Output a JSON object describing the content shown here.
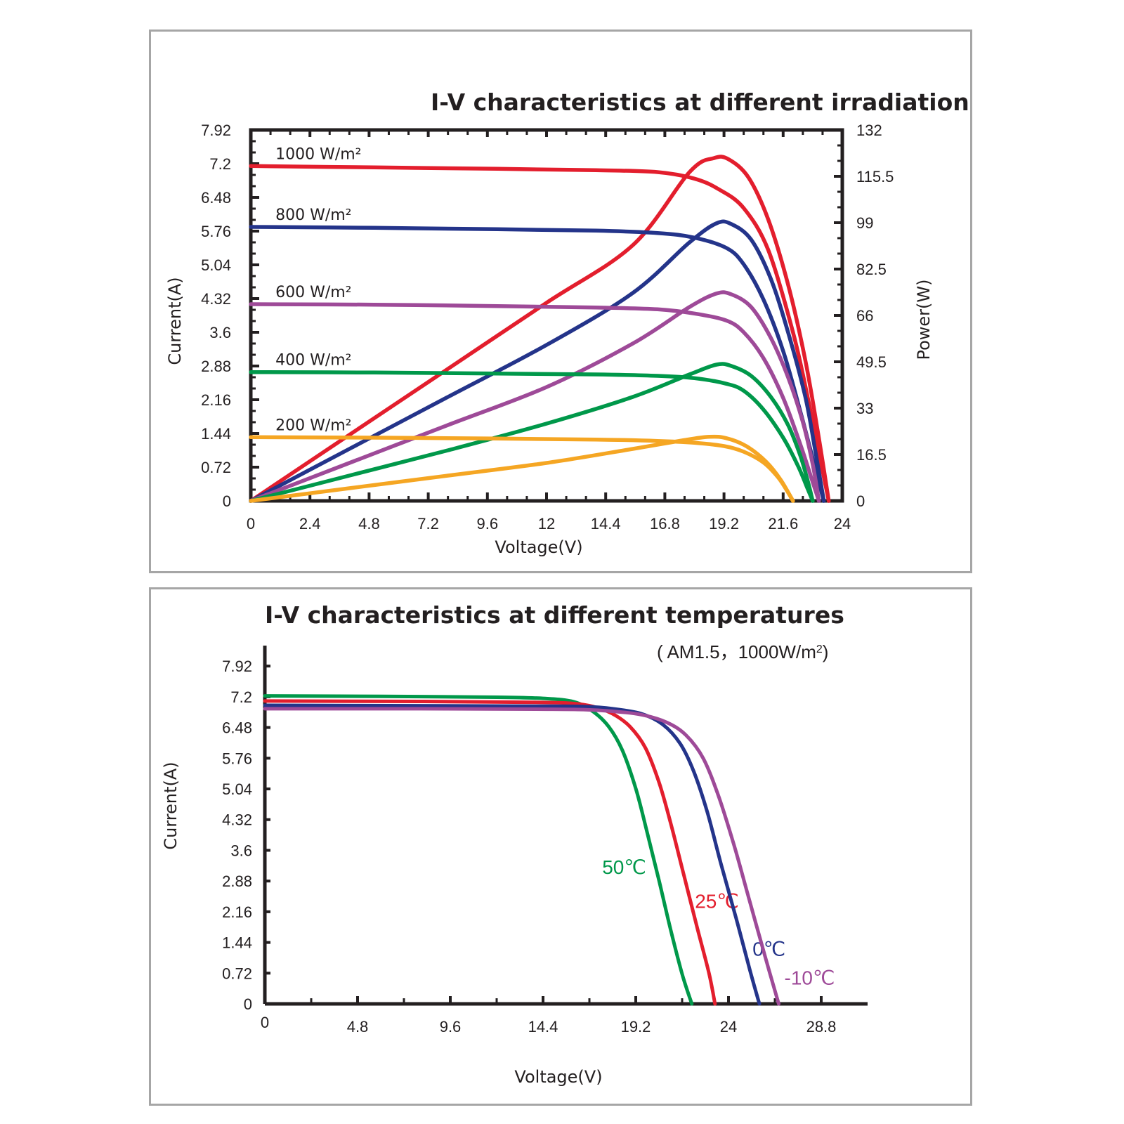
{
  "chart_data": [
    {
      "type": "line",
      "title": "I-V characteristics at different irradiations",
      "xlabel": "Voltage(V)",
      "ylabel": "Current(A)",
      "y2label": "Power(W)",
      "xlim": [
        0,
        24
      ],
      "ylim": [
        0,
        7.92
      ],
      "y2lim": [
        0,
        132
      ],
      "x_ticks": [
        "0",
        "2.4",
        "4.8",
        "7.2",
        "9.6",
        "12",
        "14.4",
        "16.8",
        "19.2",
        "21.6",
        "24"
      ],
      "y_ticks": [
        "0",
        "0.72",
        "1.44",
        "2.16",
        "2.88",
        "3.6",
        "4.32",
        "5.04",
        "5.76",
        "6.48",
        "7.2",
        "7.92"
      ],
      "y2_ticks": [
        "0",
        "16.5",
        "33",
        "49.5",
        "66",
        "82.5",
        "99",
        "115.5",
        "132"
      ],
      "grid": false,
      "series": [
        {
          "name": "1000 W/m²",
          "color": "#e31e2d",
          "iv": [
            [
              0,
              7.15
            ],
            [
              5,
              7.12
            ],
            [
              10,
              7.09
            ],
            [
              14,
              7.06
            ],
            [
              16.5,
              7.02
            ],
            [
              18,
              6.88
            ],
            [
              19,
              6.65
            ],
            [
              20,
              6.25
            ],
            [
              21,
              5.35
            ],
            [
              22,
              3.6
            ],
            [
              22.6,
              2.2
            ],
            [
              23.1,
              0.9
            ],
            [
              23.45,
              0
            ]
          ],
          "power": [
            [
              0,
              0
            ],
            [
              4,
              23.5
            ],
            [
              8,
              47
            ],
            [
              12,
              70.5
            ],
            [
              15.5,
              91
            ],
            [
              17.8,
              117
            ],
            [
              18.8,
              122
            ],
            [
              19.4,
              121.5
            ],
            [
              20.2,
              115
            ],
            [
              21,
              100
            ],
            [
              21.8,
              77
            ],
            [
              22.5,
              50
            ],
            [
              23,
              25
            ],
            [
              23.45,
              0
            ]
          ]
        },
        {
          "name": "800 W/m²",
          "color": "#24348a",
          "iv": [
            [
              0,
              5.85
            ],
            [
              5,
              5.83
            ],
            [
              10,
              5.8
            ],
            [
              14,
              5.77
            ],
            [
              16.5,
              5.72
            ],
            [
              18,
              5.62
            ],
            [
              19.3,
              5.4
            ],
            [
              20,
              5.05
            ],
            [
              20.8,
              4.3
            ],
            [
              21.6,
              3.2
            ],
            [
              22.3,
              1.9
            ],
            [
              22.9,
              0.7
            ],
            [
              23.25,
              0
            ]
          ],
          "power": [
            [
              0,
              0
            ],
            [
              4,
              18.5
            ],
            [
              8,
              37
            ],
            [
              12,
              55.5
            ],
            [
              15.5,
              74
            ],
            [
              17.8,
              92
            ],
            [
              18.9,
              98.8
            ],
            [
              19.5,
              98.5
            ],
            [
              20.3,
              93
            ],
            [
              21.1,
              79
            ],
            [
              21.8,
              60
            ],
            [
              22.5,
              37
            ],
            [
              22.9,
              18
            ],
            [
              23.25,
              0
            ]
          ]
        },
        {
          "name": "600 W/m²",
          "color": "#9e4a98",
          "iv": [
            [
              0,
              4.2
            ],
            [
              5,
              4.19
            ],
            [
              10,
              4.16
            ],
            [
              14,
              4.13
            ],
            [
              16.5,
              4.09
            ],
            [
              18,
              4.0
            ],
            [
              19.3,
              3.85
            ],
            [
              20,
              3.6
            ],
            [
              20.8,
              3.05
            ],
            [
              21.6,
              2.2
            ],
            [
              22.3,
              1.2
            ],
            [
              22.8,
              0.4
            ],
            [
              23.05,
              0
            ]
          ],
          "power": [
            [
              0,
              0
            ],
            [
              4,
              13.5
            ],
            [
              8,
              27
            ],
            [
              12,
              40.5
            ],
            [
              15.5,
              56
            ],
            [
              17.8,
              69
            ],
            [
              18.9,
              73.8
            ],
            [
              19.5,
              73.5
            ],
            [
              20.3,
              69
            ],
            [
              21.1,
              58
            ],
            [
              21.8,
              44
            ],
            [
              22.4,
              28
            ],
            [
              22.8,
              13
            ],
            [
              23.05,
              0
            ]
          ]
        },
        {
          "name": "400 W/m²",
          "color": "#00984a",
          "iv": [
            [
              0,
              2.75
            ],
            [
              5,
              2.74
            ],
            [
              10,
              2.72
            ],
            [
              14,
              2.7
            ],
            [
              16.5,
              2.67
            ],
            [
              18,
              2.62
            ],
            [
              19.3,
              2.5
            ],
            [
              20,
              2.35
            ],
            [
              20.8,
              1.95
            ],
            [
              21.6,
              1.35
            ],
            [
              22.2,
              0.75
            ],
            [
              22.6,
              0.25
            ],
            [
              22.8,
              0
            ]
          ],
          "power": [
            [
              0,
              0
            ],
            [
              4,
              9
            ],
            [
              8,
              18
            ],
            [
              12,
              27.5
            ],
            [
              15.5,
              37
            ],
            [
              17.8,
              45
            ],
            [
              18.9,
              48.5
            ],
            [
              19.5,
              48
            ],
            [
              20.3,
              44.5
            ],
            [
              21.1,
              37
            ],
            [
              21.8,
              27
            ],
            [
              22.3,
              16
            ],
            [
              22.6,
              7
            ],
            [
              22.8,
              0
            ]
          ]
        },
        {
          "name": "200 W/m²",
          "color": "#f5a623",
          "iv": [
            [
              0,
              1.36
            ],
            [
              5,
              1.35
            ],
            [
              10,
              1.33
            ],
            [
              14,
              1.31
            ],
            [
              16.5,
              1.28
            ],
            [
              18,
              1.24
            ],
            [
              19.2,
              1.17
            ],
            [
              20,
              1.05
            ],
            [
              20.8,
              0.82
            ],
            [
              21.4,
              0.5
            ],
            [
              21.8,
              0.18
            ],
            [
              22.0,
              0
            ]
          ],
          "power": [
            [
              0,
              0
            ],
            [
              4,
              4.5
            ],
            [
              8,
              9
            ],
            [
              12,
              13.5
            ],
            [
              15.5,
              18.5
            ],
            [
              17.5,
              21.5
            ],
            [
              18.6,
              22.8
            ],
            [
              19.3,
              22.3
            ],
            [
              20.1,
              19.5
            ],
            [
              20.9,
              14
            ],
            [
              21.5,
              7.5
            ],
            [
              22.0,
              0
            ]
          ]
        }
      ]
    },
    {
      "type": "line",
      "title": "I-V characteristics at different temperatures",
      "subtitle": "( AM1.5，1000W/m",
      "subtitle_sup": "2",
      "subtitle_end": ")",
      "xlabel": "Voltage(V)",
      "ylabel": "Current(A)",
      "xlim": [
        0,
        31.2
      ],
      "ylim": [
        0,
        8.4
      ],
      "x_ticks": [
        "0",
        "4.8",
        "9.6",
        "14.4",
        "19.2",
        "24",
        "28.8"
      ],
      "y_ticks": [
        "0",
        "0.72",
        "1.44",
        "2.16",
        "2.88",
        "3.6",
        "4.32",
        "5.04",
        "5.76",
        "6.48",
        "7.2",
        "7.92"
      ],
      "grid": false,
      "series": [
        {
          "name": "50℃",
          "color": "#00984a",
          "iv": [
            [
              0,
              7.22
            ],
            [
              6,
              7.21
            ],
            [
              12,
              7.19
            ],
            [
              14.5,
              7.16
            ],
            [
              16,
              7.08
            ],
            [
              17,
              6.85
            ],
            [
              17.8,
              6.5
            ],
            [
              18.5,
              5.95
            ],
            [
              19.2,
              5.05
            ],
            [
              19.8,
              4.0
            ],
            [
              20.4,
              2.9
            ],
            [
              21.0,
              1.75
            ],
            [
              21.6,
              0.7
            ],
            [
              22.1,
              0
            ]
          ]
        },
        {
          "name": "25℃",
          "color": "#e31e2d",
          "iv": [
            [
              0,
              7.1
            ],
            [
              8,
              7.09
            ],
            [
              14,
              7.07
            ],
            [
              15.8,
              7.05
            ],
            [
              17,
              6.97
            ],
            [
              18,
              6.8
            ],
            [
              18.9,
              6.5
            ],
            [
              19.7,
              6.0
            ],
            [
              20.4,
              5.2
            ],
            [
              21.0,
              4.25
            ],
            [
              21.7,
              3.0
            ],
            [
              22.4,
              1.75
            ],
            [
              23.0,
              0.7
            ],
            [
              23.3,
              0
            ]
          ]
        },
        {
          "name": "0℃",
          "color": "#24348a",
          "iv": [
            [
              0,
              7.0
            ],
            [
              8,
              6.99
            ],
            [
              14,
              6.98
            ],
            [
              16.5,
              6.97
            ],
            [
              18,
              6.92
            ],
            [
              19.5,
              6.8
            ],
            [
              20.6,
              6.55
            ],
            [
              21.5,
              6.1
            ],
            [
              22.2,
              5.45
            ],
            [
              22.9,
              4.5
            ],
            [
              23.6,
              3.3
            ],
            [
              24.4,
              2.0
            ],
            [
              25.1,
              0.8
            ],
            [
              25.6,
              0
            ]
          ]
        },
        {
          "name": "-10℃",
          "color": "#9e4a98",
          "iv": [
            [
              0,
              6.92
            ],
            [
              8,
              6.92
            ],
            [
              14,
              6.91
            ],
            [
              16.5,
              6.9
            ],
            [
              18,
              6.86
            ],
            [
              19.5,
              6.78
            ],
            [
              20.8,
              6.6
            ],
            [
              21.8,
              6.3
            ],
            [
              22.7,
              5.75
            ],
            [
              23.5,
              4.85
            ],
            [
              24.3,
              3.7
            ],
            [
              25.1,
              2.4
            ],
            [
              25.9,
              1.1
            ],
            [
              26.6,
              0
            ]
          ]
        }
      ]
    }
  ]
}
